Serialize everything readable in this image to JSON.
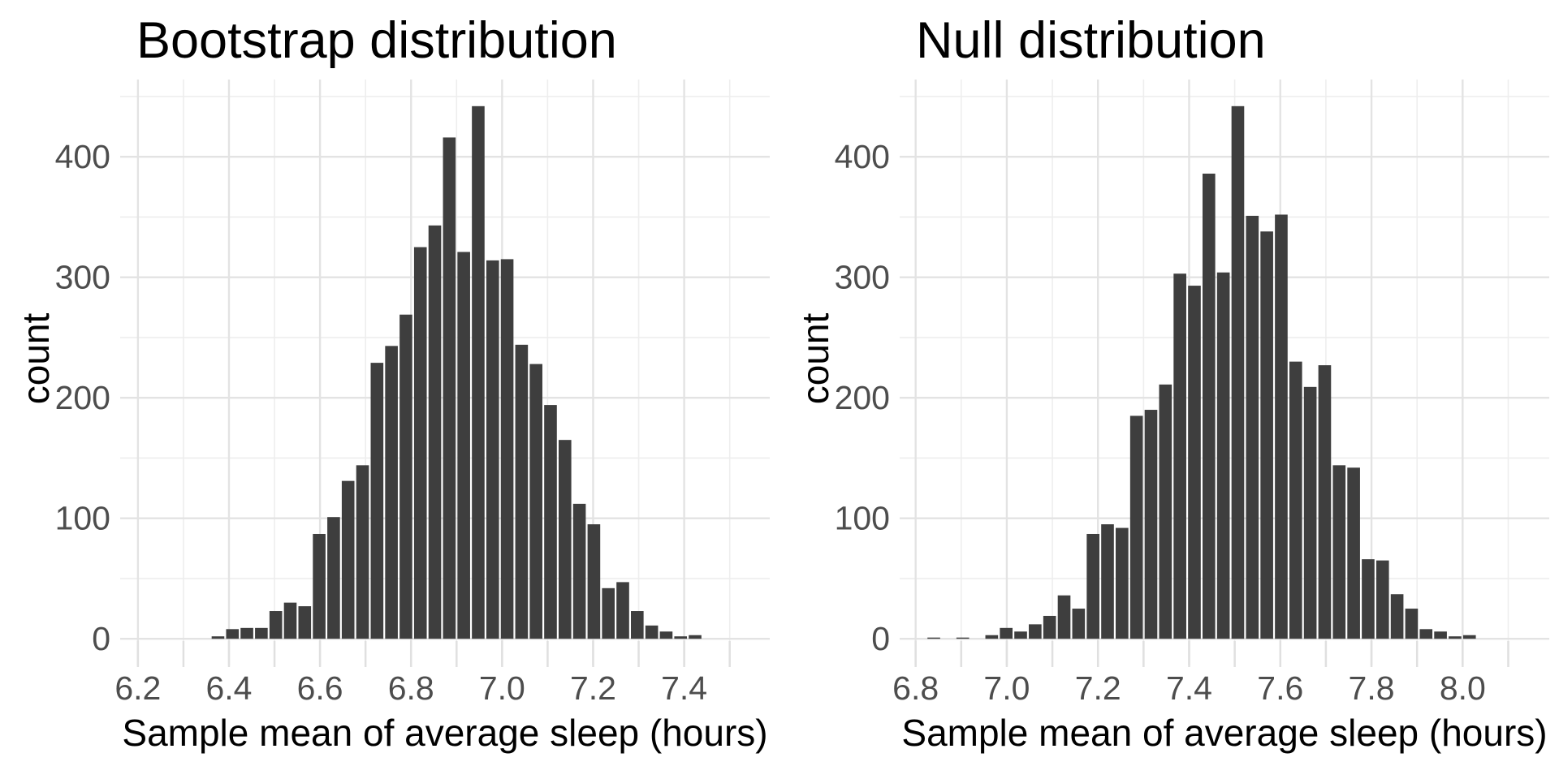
{
  "page": {
    "background_color": "#ffffff",
    "text_color": "#000000",
    "tick_label_color": "#4d4d4d",
    "grid_major_color": "#e3e3e3",
    "grid_minor_color": "#eeeeee",
    "axis_tick_color": "#e0e0e0"
  },
  "chart_data": [
    {
      "type": "bar",
      "subtype": "histogram",
      "title": "Bootstrap distribution",
      "xlabel": "Sample mean of average sleep (hours)",
      "ylabel": "count",
      "bar_color": "#3e3e3e",
      "xlim": [
        6.161,
        7.588
      ],
      "ylim": [
        -22.1,
        464.1
      ],
      "x_major_ticks": [
        6.2,
        6.4,
        6.6,
        6.8,
        7.0,
        7.2,
        7.4
      ],
      "x_tick_labels": [
        "6.2",
        "6.4",
        "6.6",
        "6.8",
        "7.0",
        "7.2",
        "7.4"
      ],
      "x_minor_ticks": [
        6.3,
        6.5,
        6.7,
        6.9,
        7.1,
        7.3,
        7.5
      ],
      "y_major_ticks": [
        0,
        100,
        200,
        300,
        400
      ],
      "y_tick_labels": [
        "0",
        "100",
        "200",
        "300",
        "400"
      ],
      "y_minor_ticks": [
        50,
        150,
        250,
        350,
        450
      ],
      "grid": true,
      "legend": false,
      "bins": {
        "start": 6.36,
        "width": 0.03176,
        "counts": [
          2,
          8,
          9,
          9,
          23,
          30,
          27,
          87,
          101,
          131,
          144,
          229,
          243,
          269,
          325,
          343,
          416,
          321,
          442,
          314,
          315,
          244,
          228,
          194,
          165,
          112,
          95,
          42,
          47,
          23,
          11,
          6,
          2,
          3
        ]
      }
    },
    {
      "type": "bar",
      "subtype": "histogram",
      "title": "Null distribution",
      "xlabel": "Sample mean of average sleep (hours)",
      "ylabel": "count",
      "bar_color": "#3e3e3e",
      "xlim": [
        6.765,
        8.19
      ],
      "ylim": [
        -22.1,
        464.1
      ],
      "x_major_ticks": [
        6.8,
        7.0,
        7.2,
        7.4,
        7.6,
        7.8,
        8.0
      ],
      "x_tick_labels": [
        "6.8",
        "7.0",
        "7.2",
        "7.4",
        "7.6",
        "7.8",
        "8.0"
      ],
      "x_minor_ticks": [
        6.9,
        7.1,
        7.3,
        7.5,
        7.7,
        7.9,
        8.1
      ],
      "y_major_ticks": [
        0,
        100,
        200,
        300,
        400
      ],
      "y_tick_labels": [
        "0",
        "100",
        "200",
        "300",
        "400"
      ],
      "y_minor_ticks": [
        50,
        150,
        250,
        350,
        450
      ],
      "grid": true,
      "legend": false,
      "bins": {
        "start": 6.824,
        "width": 0.03176,
        "counts": [
          1,
          0,
          1,
          0,
          3,
          9,
          6,
          12,
          19,
          36,
          25,
          87,
          95,
          92,
          185,
          190,
          211,
          303,
          293,
          386,
          304,
          442,
          351,
          338,
          352,
          230,
          209,
          227,
          144,
          142,
          66,
          65,
          37,
          25,
          8,
          6,
          2,
          3
        ]
      }
    }
  ]
}
